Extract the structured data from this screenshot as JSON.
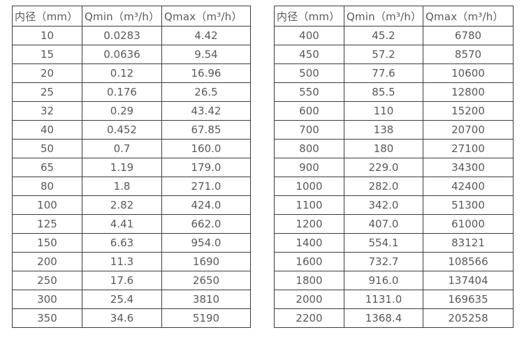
{
  "page": {
    "background": "#ffffff"
  },
  "colors": {
    "border": "#3b3b3b",
    "text": "#58595b"
  },
  "tables": [
    {
      "id": "left",
      "columns": [
        "内径（mm）",
        "Qmin（m³/h）",
        "Qmax（m³/h）"
      ],
      "rows": [
        [
          "10",
          "0.0283",
          "4.42"
        ],
        [
          "15",
          "0.0636",
          "9.54"
        ],
        [
          "20",
          "0.12",
          "16.96"
        ],
        [
          "25",
          "0.176",
          "26.5"
        ],
        [
          "32",
          "0.29",
          "43.42"
        ],
        [
          "40",
          "0.452",
          "67.85"
        ],
        [
          "50",
          "0.7",
          "160.0"
        ],
        [
          "65",
          "1.19",
          "179.0"
        ],
        [
          "80",
          "1.8",
          "271.0"
        ],
        [
          "100",
          "2.82",
          "424.0"
        ],
        [
          "125",
          "4.41",
          "662.0"
        ],
        [
          "150",
          "6.63",
          "954.0"
        ],
        [
          "200",
          "11.3",
          "1690"
        ],
        [
          "250",
          "17.6",
          "2650"
        ],
        [
          "300",
          "25.4",
          "3810"
        ],
        [
          "350",
          "34.6",
          "5190"
        ]
      ]
    },
    {
      "id": "right",
      "columns": [
        "内径（mm）",
        "Qmin（m³/h）",
        "Qmax（m³/h）"
      ],
      "rows": [
        [
          "400",
          "45.2",
          "6780"
        ],
        [
          "450",
          "57.2",
          "8570"
        ],
        [
          "500",
          "77.6",
          "10600"
        ],
        [
          "550",
          "85.5",
          "12800"
        ],
        [
          "600",
          "110",
          "15200"
        ],
        [
          "700",
          "138",
          "20700"
        ],
        [
          "800",
          "180",
          "27100"
        ],
        [
          "900",
          "229.0",
          "34300"
        ],
        [
          "1000",
          "282.0",
          "42400"
        ],
        [
          "1100",
          "342.0",
          "51300"
        ],
        [
          "1200",
          "407.0",
          "61000"
        ],
        [
          "1400",
          "554.1",
          "83121"
        ],
        [
          "1600",
          "732.7",
          "108566"
        ],
        [
          "1800",
          "916.0",
          "137404"
        ],
        [
          "2000",
          "1131.0",
          "169635"
        ],
        [
          "2200",
          "1368.4",
          "205258"
        ]
      ]
    }
  ]
}
